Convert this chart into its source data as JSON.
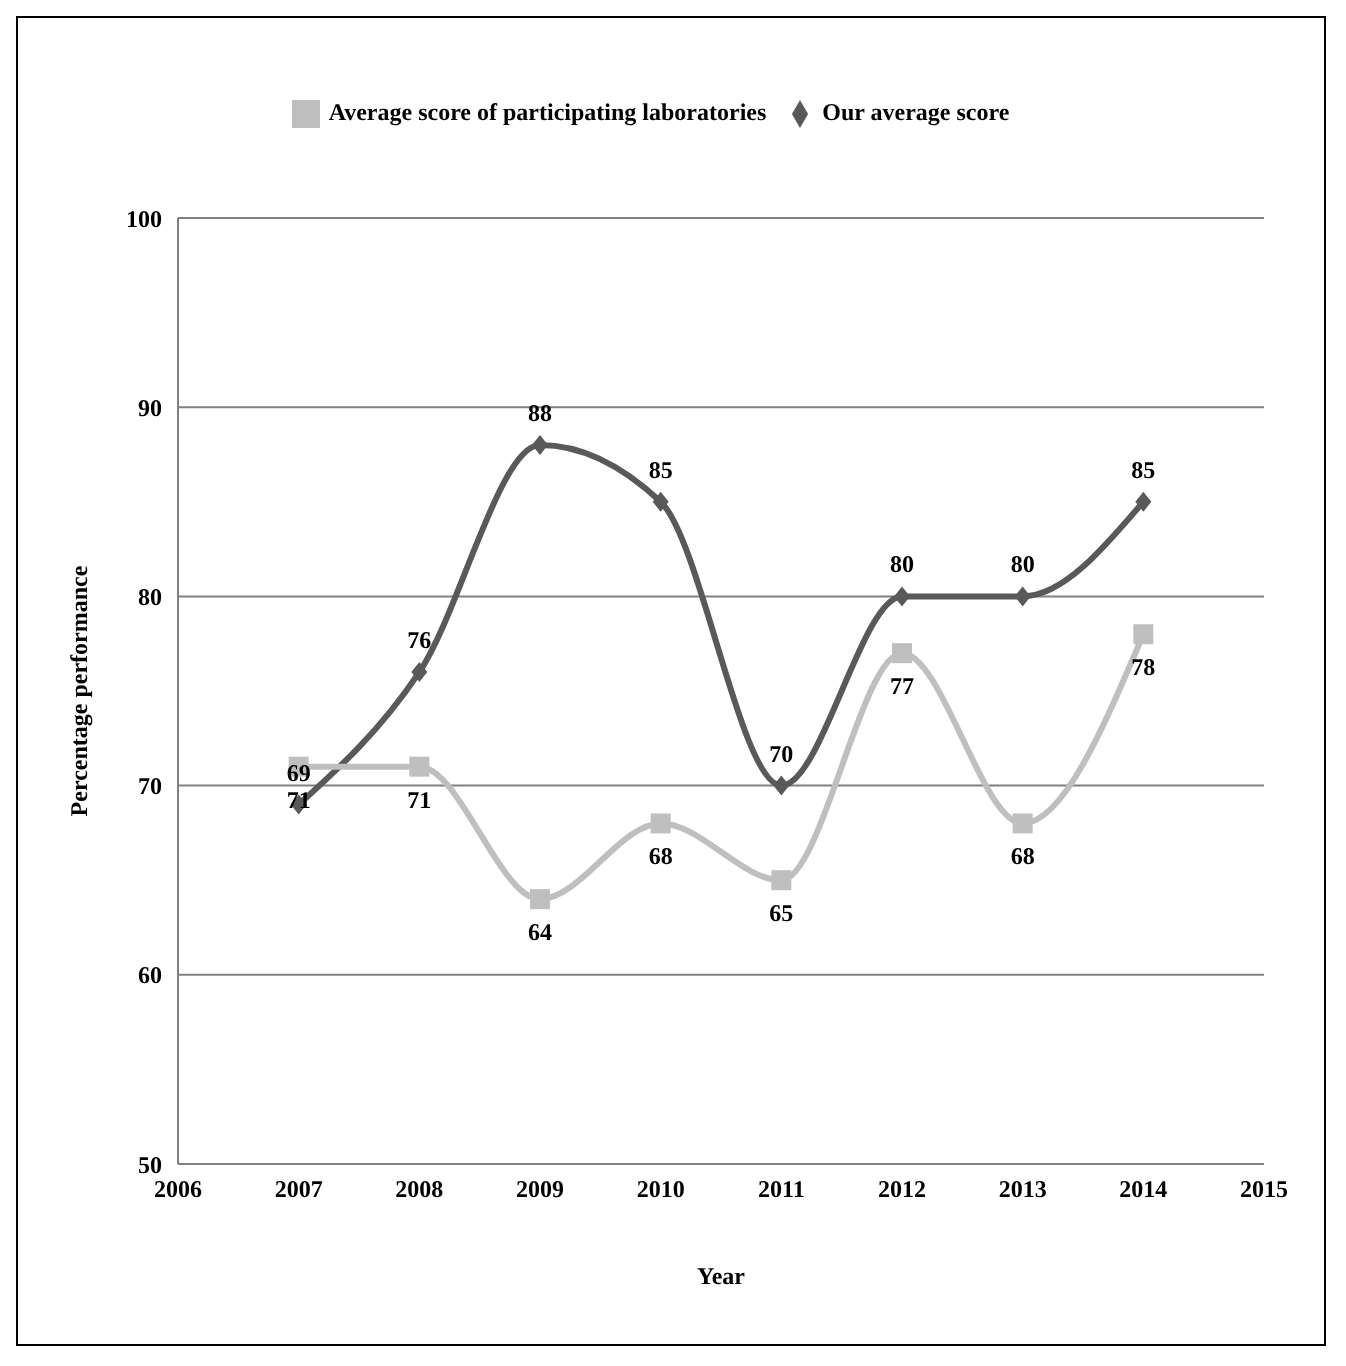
{
  "chart_data": {
    "type": "line",
    "xlabel": "Year",
    "ylabel": "Percentage performance",
    "x": [
      2007,
      2008,
      2009,
      2010,
      2011,
      2012,
      2013,
      2014
    ],
    "series": [
      {
        "name": "Our average score",
        "color": "#595959",
        "marker": "diamond",
        "values": [
          69,
          76,
          88,
          85,
          70,
          80,
          80,
          85
        ]
      },
      {
        "name": "Average score of participating laboratories",
        "color": "#bfbfbf",
        "marker": "square",
        "values": [
          71,
          71,
          64,
          68,
          65,
          77,
          68,
          78
        ]
      }
    ],
    "xlim": [
      2006,
      2015
    ],
    "xticks": [
      2006,
      2007,
      2008,
      2009,
      2010,
      2011,
      2012,
      2013,
      2014,
      2015
    ],
    "ylim": [
      50,
      100
    ],
    "yticks": [
      50,
      60,
      70,
      80,
      90,
      100
    ],
    "grid": "y",
    "legend": "top",
    "data_labels": true,
    "line_style": "solid"
  }
}
